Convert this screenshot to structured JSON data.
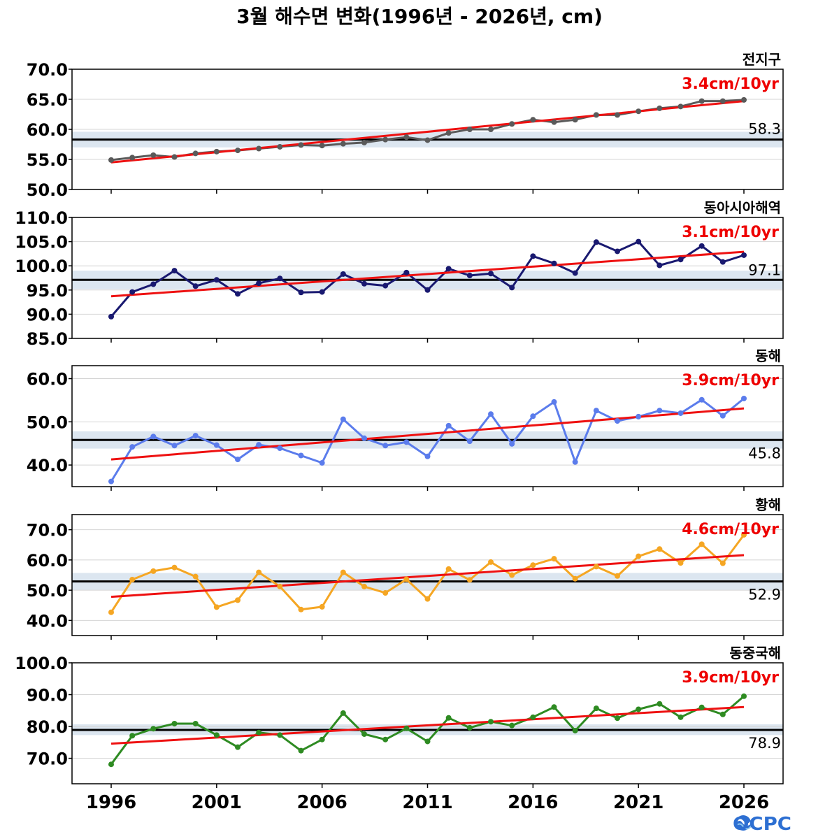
{
  "chart_data": {
    "type": "line",
    "title": "3월 해수면 변화(1996년 - 2026년, cm)",
    "x": [
      1996,
      1997,
      1998,
      1999,
      2000,
      2001,
      2002,
      2003,
      2004,
      2005,
      2006,
      2007,
      2008,
      2009,
      2010,
      2011,
      2012,
      2013,
      2014,
      2015,
      2016,
      2017,
      2018,
      2019,
      2020,
      2021,
      2022,
      2023,
      2024,
      2025,
      2026
    ],
    "x_ticks": [
      "1996",
      "2001",
      "2006",
      "2011",
      "2016",
      "2021",
      "2026"
    ],
    "grid": "horizontal",
    "panels": [
      {
        "name": "전지구",
        "color": "#5a5a5a",
        "trend_label": "3.4cm/10yr",
        "trend": [
          54.5,
          64.7
        ],
        "reference": 58.3,
        "reference_label": "58.3",
        "reference_band": [
          57.0,
          59.6
        ],
        "ylim": [
          50.0,
          70.0
        ],
        "yticks": [
          50.0,
          55.0,
          60.0,
          65.0,
          70.0
        ],
        "ytick_labels": [
          "50.0",
          "55.0",
          "60.0",
          "65.0",
          "70.0"
        ],
        "values": [
          54.9,
          55.3,
          55.7,
          55.4,
          56.0,
          56.3,
          56.5,
          56.8,
          57.1,
          57.4,
          57.3,
          57.6,
          57.8,
          58.3,
          58.7,
          58.2,
          59.4,
          60.0,
          60.0,
          60.9,
          61.6,
          61.2,
          61.6,
          62.4,
          62.4,
          63.0,
          63.5,
          63.8,
          64.7,
          64.7,
          64.9
        ]
      },
      {
        "name": "동아시아해역",
        "color": "#191970",
        "trend_label": "3.1cm/10yr",
        "trend": [
          93.7,
          102.9
        ],
        "reference": 97.1,
        "reference_label": "97.1",
        "reference_band": [
          95.2,
          99.0
        ],
        "ylim": [
          85.0,
          110.0
        ],
        "yticks": [
          85.0,
          90.0,
          95.0,
          100.0,
          105.0,
          110.0
        ],
        "ytick_labels": [
          "85.0",
          "90.0",
          "95.0",
          "100.0",
          "105.0",
          "110.0"
        ],
        "values": [
          89.5,
          94.6,
          96.2,
          99.0,
          95.8,
          97.1,
          94.2,
          96.4,
          97.4,
          94.5,
          94.6,
          98.3,
          96.3,
          95.9,
          98.6,
          95.0,
          99.4,
          98.0,
          98.4,
          95.5,
          102.0,
          100.5,
          98.5,
          104.9,
          103.0,
          105.0,
          100.1,
          101.3,
          104.1,
          100.8,
          102.2
        ]
      },
      {
        "name": "동해",
        "color": "#5b7cec",
        "trend_label": "3.9cm/10yr",
        "trend": [
          41.3,
          53.1
        ],
        "reference": 45.8,
        "reference_label": "45.8",
        "reference_band": [
          43.8,
          47.8
        ],
        "ylim": [
          35.0,
          63.0
        ],
        "yticks": [
          40.0,
          50.0,
          60.0
        ],
        "ytick_labels": [
          "40.0",
          "50.0",
          "60.0"
        ],
        "values": [
          36.2,
          44.2,
          46.6,
          44.5,
          46.8,
          44.6,
          41.3,
          44.7,
          43.9,
          42.2,
          40.5,
          50.6,
          46.2,
          44.5,
          45.3,
          42.0,
          49.1,
          45.5,
          51.8,
          44.9,
          51.3,
          54.6,
          40.7,
          52.6,
          50.2,
          51.2,
          52.6,
          52.0,
          55.1,
          51.4,
          55.4
        ]
      },
      {
        "name": "황해",
        "color": "#f5a623",
        "trend_label": "4.6cm/10yr",
        "trend": [
          47.8,
          61.6
        ],
        "reference": 52.9,
        "reference_label": "52.9",
        "reference_band": [
          50.1,
          55.7
        ],
        "ylim": [
          35.0,
          75.0
        ],
        "yticks": [
          40.0,
          50.0,
          60.0,
          70.0
        ],
        "ytick_labels": [
          "40.0",
          "50.0",
          "60.0",
          "70.0"
        ],
        "values": [
          42.7,
          53.5,
          56.3,
          57.5,
          54.5,
          44.4,
          46.7,
          55.9,
          51.2,
          43.6,
          44.5,
          55.9,
          51.2,
          49.1,
          53.6,
          47.1,
          57.0,
          53.4,
          59.3,
          55.0,
          58.3,
          60.4,
          53.8,
          57.8,
          54.7,
          61.2,
          63.6,
          59.0,
          65.2,
          58.9,
          68.3
        ]
      },
      {
        "name": "동중국해",
        "color": "#2e8b22",
        "trend_label": "3.9cm/10yr",
        "trend": [
          74.6,
          86.1
        ],
        "reference": 78.9,
        "reference_label": "78.9",
        "reference_band": [
          77.3,
          80.7
        ],
        "ylim": [
          62.0,
          100.0
        ],
        "yticks": [
          70.0,
          80.0,
          90.0,
          100.0
        ],
        "ytick_labels": [
          "70.0",
          "80.0",
          "90.0",
          "100.0"
        ],
        "values": [
          68.1,
          77.1,
          79.3,
          80.9,
          80.9,
          77.3,
          73.5,
          78.1,
          77.3,
          72.4,
          75.9,
          84.2,
          77.6,
          75.9,
          79.4,
          75.3,
          82.7,
          79.6,
          81.5,
          80.3,
          82.9,
          86.1,
          78.7,
          85.7,
          82.6,
          85.4,
          87.1,
          82.9,
          86.0,
          83.8,
          89.5
        ]
      }
    ]
  },
  "logo": {
    "text": "OCPC",
    "colors": [
      "#2d6fd2",
      "#8fc7ef"
    ]
  }
}
